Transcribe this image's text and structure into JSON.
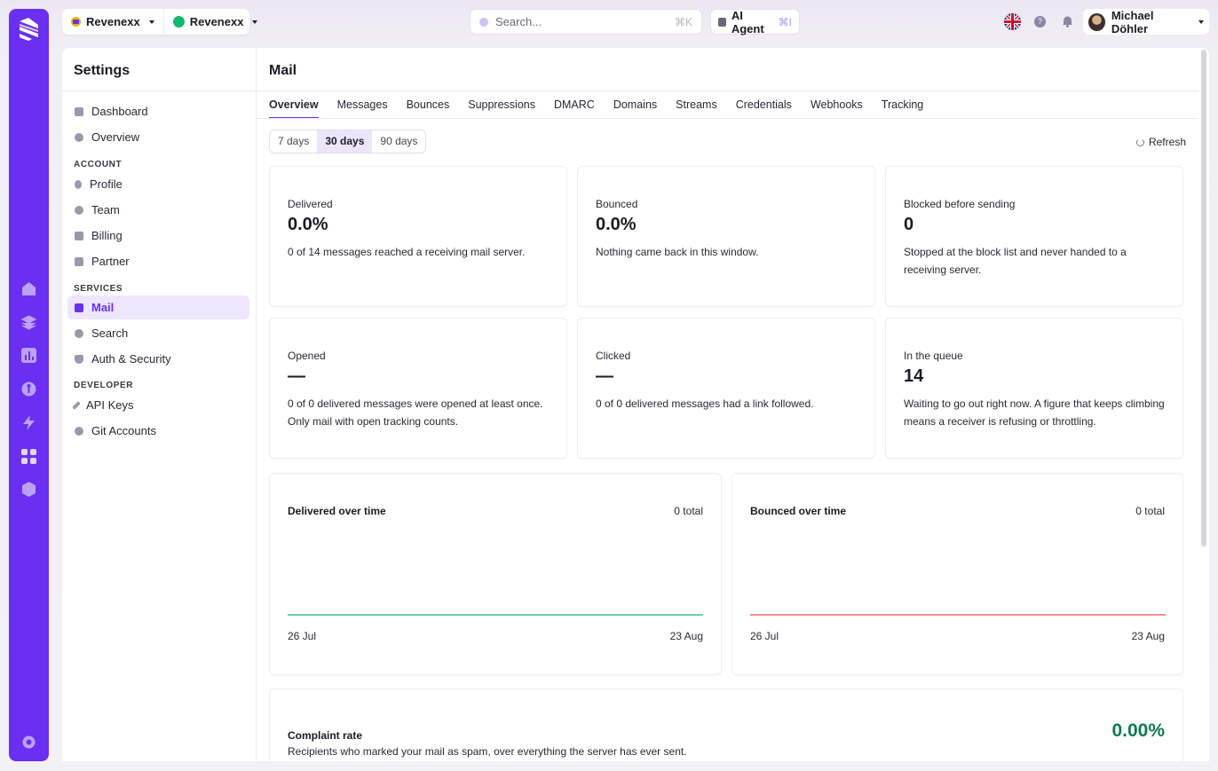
{
  "topbar": {
    "org_name": "Revenexx",
    "project_name": "Revenexx",
    "search_placeholder": "Search...",
    "search_shortcut": "⌘K",
    "agent_label": "AI Agent",
    "agent_shortcut": "⌘I",
    "help_glyph": "?",
    "user_name": "Michael Döhler"
  },
  "sidebar": {
    "title": "Settings",
    "top_items": [
      "Dashboard",
      "Overview"
    ],
    "account_header": "ACCOUNT",
    "account_items": [
      "Profile",
      "Team",
      "Billing",
      "Partner"
    ],
    "services_header": "SERVICES",
    "services_items": [
      "Mail",
      "Search",
      "Auth & Security"
    ],
    "developer_header": "DEVELOPER",
    "developer_items": [
      "API Keys",
      "Git Accounts"
    ],
    "active": "Mail"
  },
  "main": {
    "title": "Mail",
    "tabs": [
      "Overview",
      "Messages",
      "Bounces",
      "Suppressions",
      "DMARC",
      "Domains",
      "Streams",
      "Credentials",
      "Webhooks",
      "Tracking"
    ],
    "active_tab": "Overview",
    "ranges": [
      "7 days",
      "30 days",
      "90 days"
    ],
    "selected_range": "30 days",
    "refresh_label": "Refresh"
  },
  "stats": [
    {
      "label": "Delivered",
      "value": "0.0%",
      "desc": "0 of 14 messages reached a receiving mail server."
    },
    {
      "label": "Bounced",
      "value": "0.0%",
      "desc": "Nothing came back in this window."
    },
    {
      "label": "Blocked before sending",
      "value": "0",
      "desc": "Stopped at the block list and never handed to a receiving server."
    },
    {
      "label": "Opened",
      "value": "—",
      "desc": "0 of 0 delivered messages were opened at least once. Only mail with open tracking counts."
    },
    {
      "label": "Clicked",
      "value": "—",
      "desc": "0 of 0 delivered messages had a link followed."
    },
    {
      "label": "In the queue",
      "value": "14",
      "desc": "Waiting to go out right now. A figure that keeps climbing means a receiver is refusing or throttling."
    }
  ],
  "charts": [
    {
      "title": "Delivered over time",
      "total": "0 total",
      "x_start": "26 Jul",
      "x_end": "23 Aug",
      "color": "#3cc18a"
    },
    {
      "title": "Bounced over time",
      "total": "0 total",
      "x_start": "26 Jul",
      "x_end": "23 Aug",
      "color": "#f06b6b"
    }
  ],
  "chart_data": [
    {
      "type": "line",
      "title": "Delivered over time",
      "x": [
        "26 Jul",
        "23 Aug"
      ],
      "series": [
        {
          "values": [
            0,
            0
          ]
        }
      ]
    },
    {
      "type": "line",
      "title": "Bounced over time",
      "x": [
        "26 Jul",
        "23 Aug"
      ],
      "series": [
        {
          "values": [
            0,
            0
          ]
        }
      ]
    }
  ],
  "complaint": {
    "label": "Complaint rate",
    "desc": "Recipients who marked your mail as spam, over everything the server has ever sent.",
    "value": "0.00%"
  }
}
